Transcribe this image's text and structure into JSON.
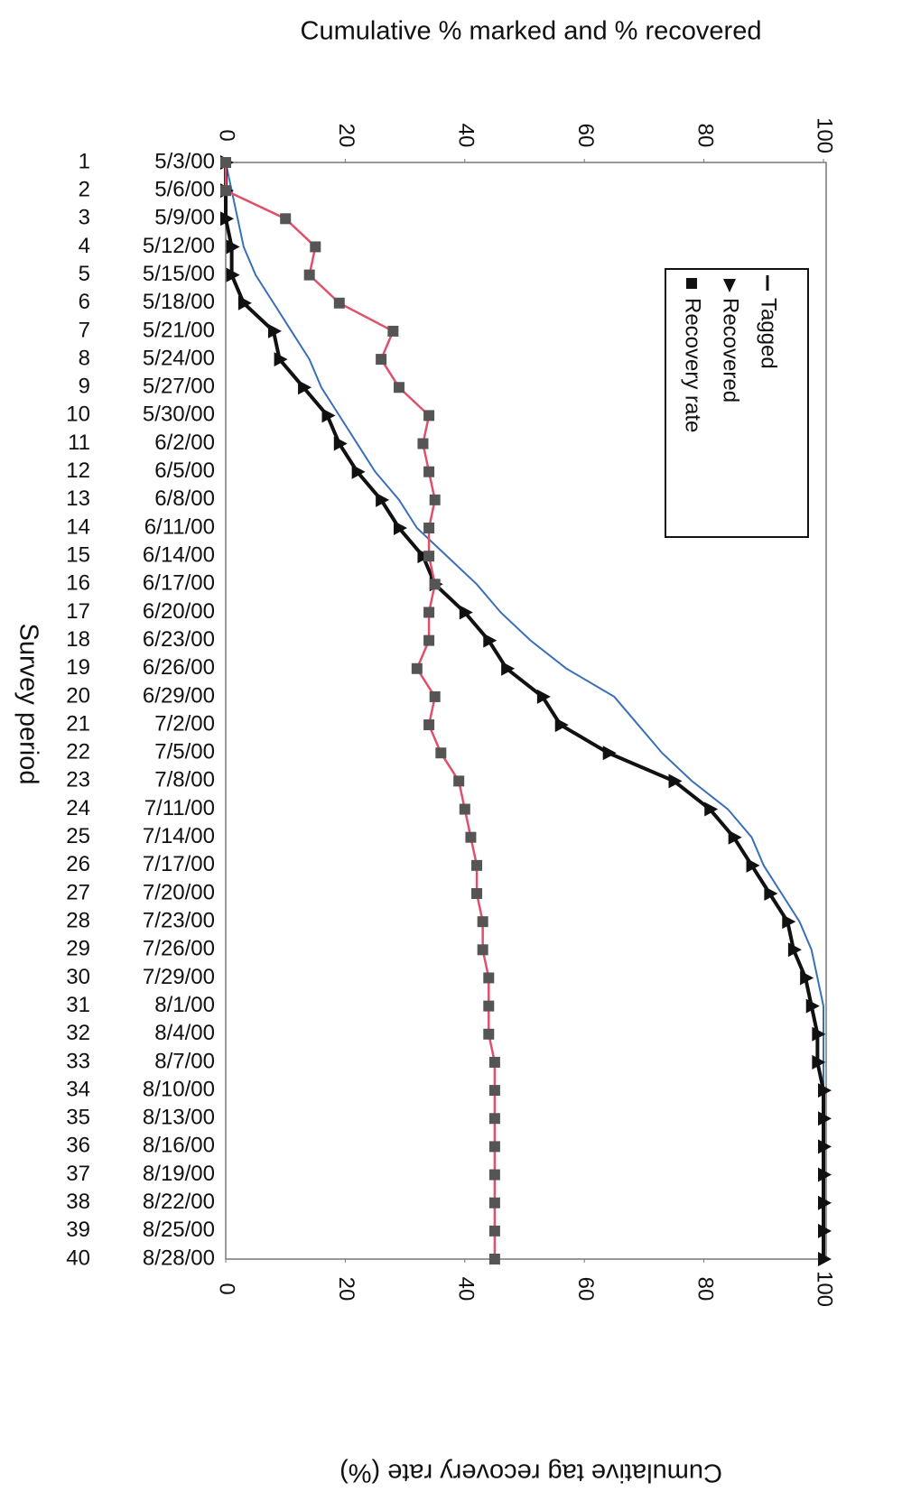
{
  "chart_data": {
    "type": "line",
    "title": "Cumulative % marked and % recovered",
    "y2_title": "Cumulative tag recovery rate (%)",
    "x_title": "Survey period",
    "periods": [
      1,
      2,
      3,
      4,
      5,
      6,
      7,
      8,
      9,
      10,
      11,
      12,
      13,
      14,
      15,
      16,
      17,
      18,
      19,
      20,
      21,
      22,
      23,
      24,
      25,
      26,
      27,
      28,
      29,
      30,
      31,
      32,
      33,
      34,
      35,
      36,
      37,
      38,
      39,
      40
    ],
    "categories": [
      "5/3/00",
      "5/6/00",
      "5/9/00",
      "5/12/00",
      "5/15/00",
      "5/18/00",
      "5/21/00",
      "5/24/00",
      "5/27/00",
      "5/30/00",
      "6/2/00",
      "6/5/00",
      "6/8/00",
      "6/11/00",
      "6/14/00",
      "6/17/00",
      "6/20/00",
      "6/23/00",
      "6/26/00",
      "6/29/00",
      "7/2/00",
      "7/5/00",
      "7/8/00",
      "7/11/00",
      "7/14/00",
      "7/17/00",
      "7/20/00",
      "7/23/00",
      "7/26/00",
      "7/29/00",
      "8/1/00",
      "8/4/00",
      "8/7/00",
      "8/10/00",
      "8/13/00",
      "8/16/00",
      "8/19/00",
      "8/22/00",
      "8/25/00",
      "8/28/00"
    ],
    "series": [
      {
        "name": "Tagged",
        "color": "#3a6fb8",
        "marker": "none",
        "values": [
          0,
          1,
          2,
          3,
          5,
          8,
          11,
          14,
          16,
          19,
          22,
          25,
          29,
          32,
          37,
          42,
          46,
          51,
          57,
          65,
          69,
          73,
          78,
          84,
          88,
          90,
          93,
          96,
          98,
          99,
          100,
          100,
          100,
          100,
          100,
          100,
          100,
          100,
          100,
          100
        ]
      },
      {
        "name": "Recovered",
        "color": "#111111",
        "marker": "triangle",
        "values": [
          0,
          0,
          0,
          1,
          1,
          3,
          8,
          9,
          13,
          17,
          19,
          22,
          26,
          29,
          33,
          35,
          40,
          44,
          47,
          53,
          56,
          64,
          75,
          81,
          85,
          88,
          91,
          94,
          95,
          97,
          98,
          99,
          99,
          100,
          100,
          100,
          100,
          100,
          100,
          100
        ]
      },
      {
        "name": "Recovery rate",
        "color": "#e0506a",
        "marker": "square",
        "axis": "y2",
        "values": [
          0,
          0,
          10,
          15,
          14,
          19,
          28,
          26,
          29,
          34,
          33,
          34,
          35,
          34,
          34,
          35,
          34,
          34,
          32,
          35,
          34,
          36,
          39,
          40,
          41,
          42,
          42,
          43,
          43,
          44,
          44,
          44,
          45,
          45,
          45,
          45,
          45,
          45,
          45,
          45
        ]
      }
    ],
    "ylim": [
      0,
      100
    ],
    "yticks": [
      0,
      20,
      40,
      60,
      80,
      100
    ],
    "y2lim": [
      0,
      100
    ],
    "y2ticks": [
      0,
      20,
      40,
      60,
      80,
      100
    ]
  }
}
